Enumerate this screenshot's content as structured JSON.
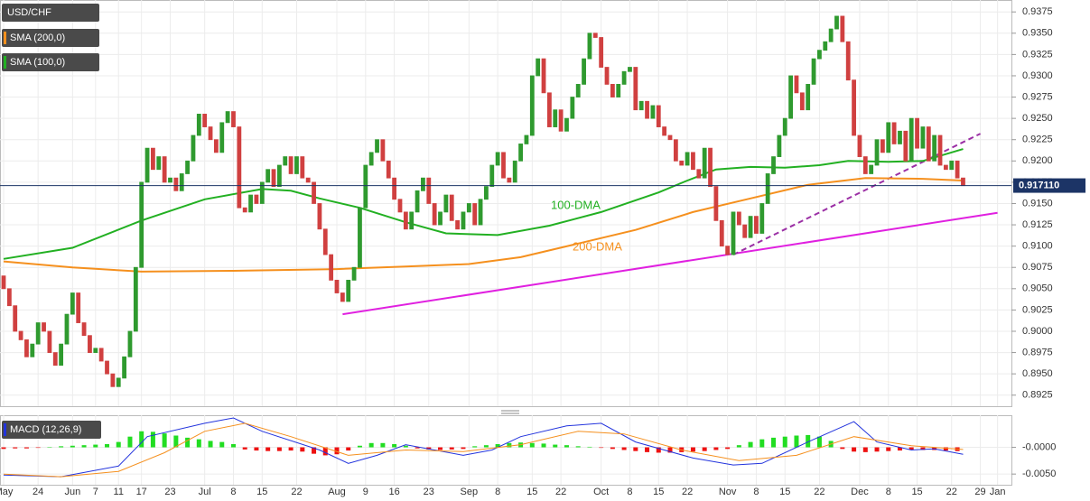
{
  "chart_data": [
    {
      "type": "candlestick",
      "title": "USD/CHF",
      "first_open": 0.9065,
      "close": [
        0.905,
        0.903,
        0.9,
        0.899,
        0.897,
        0.8985,
        0.901,
        0.9,
        0.8975,
        0.896,
        0.8985,
        0.902,
        0.9045,
        0.901,
        0.8995,
        0.8975,
        0.898,
        0.8965,
        0.895,
        0.8935,
        0.8945,
        0.897,
        0.9,
        0.9075,
        0.9175,
        0.9215,
        0.919,
        0.9205,
        0.9175,
        0.918,
        0.9165,
        0.9185,
        0.92,
        0.923,
        0.9255,
        0.924,
        0.9225,
        0.921,
        0.9245,
        0.9258,
        0.924,
        0.9145,
        0.914,
        0.916,
        0.915,
        0.9175,
        0.919,
        0.917,
        0.9195,
        0.9205,
        0.9185,
        0.9205,
        0.918,
        0.9175,
        0.915,
        0.912,
        0.909,
        0.906,
        0.9045,
        0.9035,
        0.906,
        0.9075,
        0.9145,
        0.9195,
        0.921,
        0.9225,
        0.92,
        0.918,
        0.9155,
        0.914,
        0.912,
        0.914,
        0.9165,
        0.918,
        0.915,
        0.9125,
        0.914,
        0.916,
        0.913,
        0.912,
        0.914,
        0.915,
        0.9125,
        0.9155,
        0.917,
        0.9195,
        0.921,
        0.918,
        0.9175,
        0.92,
        0.922,
        0.923,
        0.93,
        0.932,
        0.928,
        0.924,
        0.926,
        0.9235,
        0.925,
        0.9275,
        0.929,
        0.932,
        0.935,
        0.9345,
        0.931,
        0.929,
        0.9275,
        0.929,
        0.9305,
        0.931,
        0.926,
        0.927,
        0.925,
        0.9265,
        0.924,
        0.923,
        0.9225,
        0.92,
        0.9195,
        0.921,
        0.919,
        0.918,
        0.9215,
        0.917,
        0.913,
        0.91,
        0.909,
        0.914,
        0.9125,
        0.911,
        0.9135,
        0.9115,
        0.915,
        0.9185,
        0.9205,
        0.923,
        0.925,
        0.93,
        0.928,
        0.926,
        0.929,
        0.932,
        0.933,
        0.934,
        0.9355,
        0.937,
        0.934,
        0.9295,
        0.923,
        0.9205,
        0.9185,
        0.9195,
        0.9225,
        0.921,
        0.9245,
        0.922,
        0.9235,
        0.92,
        0.925,
        0.9215,
        0.924,
        0.92,
        0.923,
        0.9195,
        0.919,
        0.92,
        0.918,
        0.9171
      ],
      "up_color": "#2f9a2f",
      "down_color": "#d04040",
      "xlim": [
        0,
        174
      ],
      "xticks": [
        {
          "value": 0,
          "label": "May"
        },
        {
          "value": 6,
          "label": "24"
        },
        {
          "value": 12,
          "label": "Jun"
        },
        {
          "value": 16,
          "label": "7"
        },
        {
          "value": 20,
          "label": "11"
        },
        {
          "value": 24,
          "label": "17"
        },
        {
          "value": 29,
          "label": "23"
        },
        {
          "value": 35,
          "label": "Jul"
        },
        {
          "value": 40,
          "label": "8"
        },
        {
          "value": 45,
          "label": "15"
        },
        {
          "value": 51,
          "label": "22"
        },
        {
          "value": 58,
          "label": "Aug"
        },
        {
          "value": 63,
          "label": "9"
        },
        {
          "value": 68,
          "label": "16"
        },
        {
          "value": 74,
          "label": "23"
        },
        {
          "value": 81,
          "label": "Sep"
        },
        {
          "value": 86,
          "label": "8"
        },
        {
          "value": 92,
          "label": "15"
        },
        {
          "value": 97,
          "label": "22"
        },
        {
          "value": 104,
          "label": "Oct"
        },
        {
          "value": 109,
          "label": "8"
        },
        {
          "value": 114,
          "label": "15"
        },
        {
          "value": 119,
          "label": "22"
        },
        {
          "value": 126,
          "label": "Nov"
        },
        {
          "value": 131,
          "label": "8"
        },
        {
          "value": 136,
          "label": "15"
        },
        {
          "value": 142,
          "label": "22"
        },
        {
          "value": 149,
          "label": "Dec"
        },
        {
          "value": 154,
          "label": "8"
        },
        {
          "value": 159,
          "label": "15"
        },
        {
          "value": 165,
          "label": "22"
        },
        {
          "value": 170,
          "label": "29"
        },
        {
          "value": 173,
          "label": "Jan"
        }
      ],
      "ylim": [
        0.8912,
        0.9389
      ],
      "yticks": [
        0.9375,
        {
          "value": 0.935,
          "label": "0.9350"
        },
        0.9325,
        {
          "value": 0.93,
          "label": "0.9300"
        },
        0.9275,
        {
          "value": 0.925,
          "label": "0.9250"
        },
        0.9225,
        {
          "value": 0.92,
          "label": "0.9200"
        },
        0.9175,
        {
          "value": 0.915,
          "label": "0.9150"
        },
        0.9125,
        {
          "value": 0.91,
          "label": "0.9100"
        },
        0.9075,
        {
          "value": 0.905,
          "label": "0.9050"
        },
        0.9025,
        {
          "value": 0.9,
          "label": "0.9000"
        },
        0.8975,
        {
          "value": 0.895,
          "label": "0.8950"
        },
        0.8925
      ],
      "grid": true,
      "series": [
        {
          "name": "SMA (200,0)",
          "label": "200-DMA",
          "color": "#f5901e",
          "x": [
            0,
            12,
            24,
            40,
            58,
            70,
            81,
            90,
            100,
            110,
            120,
            130,
            140,
            150,
            160,
            167
          ],
          "values": [
            0.9082,
            0.9075,
            0.907,
            0.9071,
            0.9073,
            0.9076,
            0.9079,
            0.9087,
            0.9103,
            0.9119,
            0.914,
            0.9156,
            0.9172,
            0.918,
            0.9179,
            0.9177
          ]
        },
        {
          "name": "SMA (100,0)",
          "label": "100-DMA",
          "color": "#22b022",
          "x": [
            0,
            12,
            24,
            35,
            45,
            50,
            55,
            62,
            70,
            77,
            86,
            95,
            104,
            114,
            119,
            124,
            130,
            136,
            142,
            147,
            154,
            160,
            167
          ],
          "values": [
            0.9085,
            0.9098,
            0.913,
            0.9155,
            0.9167,
            0.9165,
            0.9156,
            0.9145,
            0.9128,
            0.9115,
            0.9113,
            0.9124,
            0.914,
            0.9163,
            0.9177,
            0.919,
            0.9193,
            0.9192,
            0.9195,
            0.92,
            0.9199,
            0.92,
            0.9214
          ]
        }
      ],
      "trendlines": [
        {
          "color": "#e020e0",
          "style": "solid",
          "x": [
            59,
            173
          ],
          "values": [
            0.902,
            0.9139
          ]
        },
        {
          "color": "#9b2fa5",
          "style": "dashed",
          "x": [
            127,
            170
          ],
          "values": [
            0.909,
            0.9232
          ]
        }
      ],
      "last_price": {
        "value": 0.91711,
        "label": "0.917110"
      }
    },
    {
      "type": "macd",
      "title": "MACD (12,26,9)",
      "xlim": [
        0,
        174
      ],
      "ylim": [
        -0.007,
        0.006
      ],
      "yticks": [
        {
          "value": 0,
          "label": "-0.0000"
        },
        {
          "value": -0.005,
          "label": "-0.0050"
        }
      ],
      "histogram": {
        "pos_color": "#22dd22",
        "neg_color": "#ee1111",
        "x": [
          0,
          2,
          4,
          6,
          8,
          10,
          12,
          14,
          16,
          18,
          20,
          22,
          24,
          26,
          28,
          30,
          32,
          34,
          36,
          38,
          40,
          42,
          44,
          46,
          48,
          50,
          52,
          54,
          56,
          58,
          60,
          62,
          64,
          66,
          68,
          70,
          72,
          74,
          76,
          78,
          80,
          82,
          84,
          86,
          88,
          90,
          92,
          94,
          96,
          98,
          100,
          102,
          104,
          106,
          108,
          110,
          112,
          114,
          116,
          118,
          120,
          122,
          124,
          126,
          128,
          130,
          132,
          134,
          136,
          138,
          140,
          142,
          144,
          146,
          148,
          150,
          152,
          154,
          156,
          158,
          160,
          162,
          164,
          166
        ],
        "values": [
          -0.0003,
          -0.0002,
          -0.0002,
          -0.0001,
          0.0,
          0.0002,
          0.0003,
          0.0004,
          0.0005,
          0.0006,
          0.001,
          0.002,
          0.003,
          0.0029,
          0.0026,
          0.0022,
          0.0018,
          0.0015,
          0.0012,
          0.001,
          0.0006,
          -0.0004,
          -0.0006,
          -0.0007,
          -0.0007,
          -0.0006,
          -0.0008,
          -0.0012,
          -0.0015,
          -0.0013,
          -0.0006,
          0.0003,
          0.0008,
          0.0008,
          0.0006,
          0.0003,
          -0.0002,
          -0.0004,
          -0.0005,
          -0.0004,
          -0.0003,
          0.0002,
          0.0004,
          0.0006,
          0.0008,
          0.0009,
          0.0008,
          0.0007,
          0.0005,
          0.0004,
          0.0002,
          0.0001,
          -0.0001,
          -0.0003,
          -0.0005,
          -0.0007,
          -0.0009,
          -0.001,
          -0.001,
          -0.0009,
          -0.0008,
          -0.0007,
          -0.0005,
          -0.0003,
          0.0004,
          0.001,
          0.0015,
          0.0018,
          0.002,
          0.0022,
          0.0023,
          0.002,
          0.0012,
          -0.0003,
          -0.0008,
          -0.0009,
          -0.0008,
          -0.0007,
          -0.0006,
          -0.0005,
          -0.0005,
          -0.0005,
          -0.0006,
          -0.0007
        ]
      },
      "series": [
        {
          "color": "#2233dd",
          "x": [
            0,
            10,
            20,
            25,
            35,
            40,
            45,
            55,
            60,
            65,
            70,
            80,
            85,
            90,
            98,
            104,
            110,
            120,
            127,
            132,
            140,
            148,
            152,
            158,
            162,
            167
          ],
          "values": [
            -0.0052,
            -0.0055,
            -0.0035,
            0.002,
            0.0045,
            0.0055,
            0.003,
            -0.0005,
            -0.003,
            -0.0015,
            0.0005,
            -0.0015,
            -0.0005,
            0.002,
            0.004,
            0.0045,
            0.001,
            -0.002,
            -0.0033,
            -0.003,
            0.001,
            0.0048,
            0.001,
            -0.0005,
            -0.0003,
            -0.0013
          ]
        },
        {
          "color": "#f5901e",
          "x": [
            0,
            10,
            20,
            28,
            35,
            42,
            50,
            60,
            70,
            80,
            90,
            100,
            108,
            118,
            128,
            138,
            148,
            158,
            167
          ],
          "values": [
            -0.005,
            -0.0055,
            -0.0045,
            -0.001,
            0.003,
            0.0045,
            0.002,
            -0.0015,
            -0.0005,
            -0.0008,
            0.0005,
            0.003,
            0.0025,
            -0.0005,
            -0.0025,
            -0.0015,
            0.002,
            0.0003,
            -0.0004
          ]
        }
      ]
    }
  ]
}
